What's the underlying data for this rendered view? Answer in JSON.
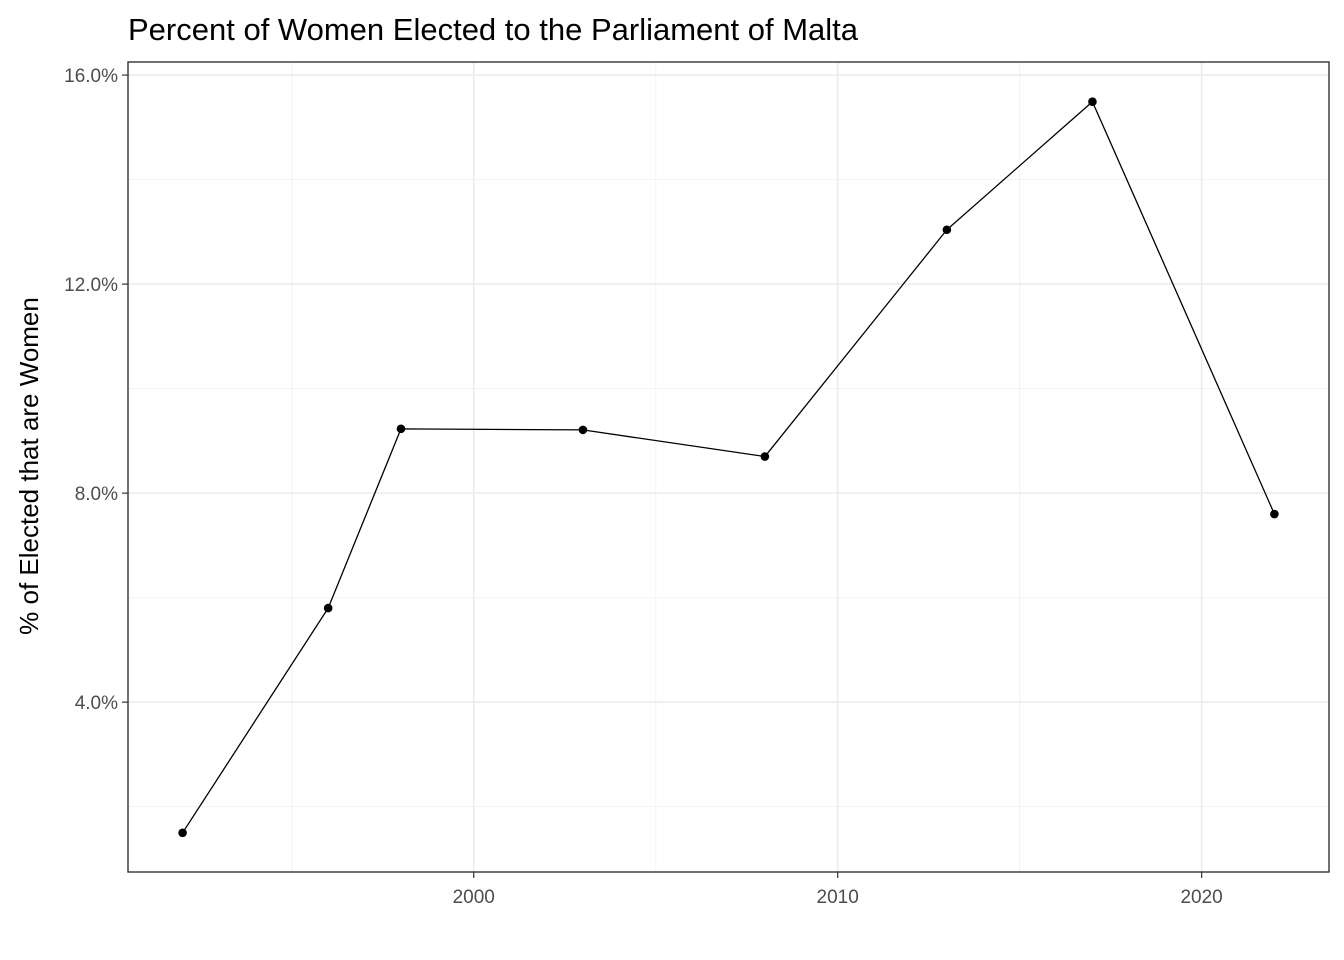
{
  "chart_data": {
    "type": "line",
    "title": "Percent of Women Elected to the Parliament of Malta",
    "xlabel": "",
    "ylabel": "% of Elected that are Women",
    "x": [
      1992,
      1996,
      1998,
      2003,
      2008,
      2013,
      2017,
      2022
    ],
    "series": [
      {
        "values": [
          1.5,
          5.8,
          9.23,
          9.21,
          8.7,
          13.04,
          15.49,
          7.6
        ]
      }
    ],
    "xlim": [
      1990.5,
      2023.5
    ],
    "ylim": [
      0.75,
      16.25
    ],
    "x_ticks": [
      2000,
      2010,
      2020
    ],
    "x_tick_labels": [
      "2000",
      "2010",
      "2020"
    ],
    "y_ticks": [
      4,
      8,
      12,
      16
    ],
    "y_tick_labels": [
      "4.0%",
      "8.0%",
      "12.0%",
      "16.0%"
    ],
    "grid": true,
    "legend": "none",
    "colors": {
      "line": "#000000",
      "point": "#000000",
      "grid": "#ebebeb",
      "tick_text": "#4d4d4d"
    }
  }
}
